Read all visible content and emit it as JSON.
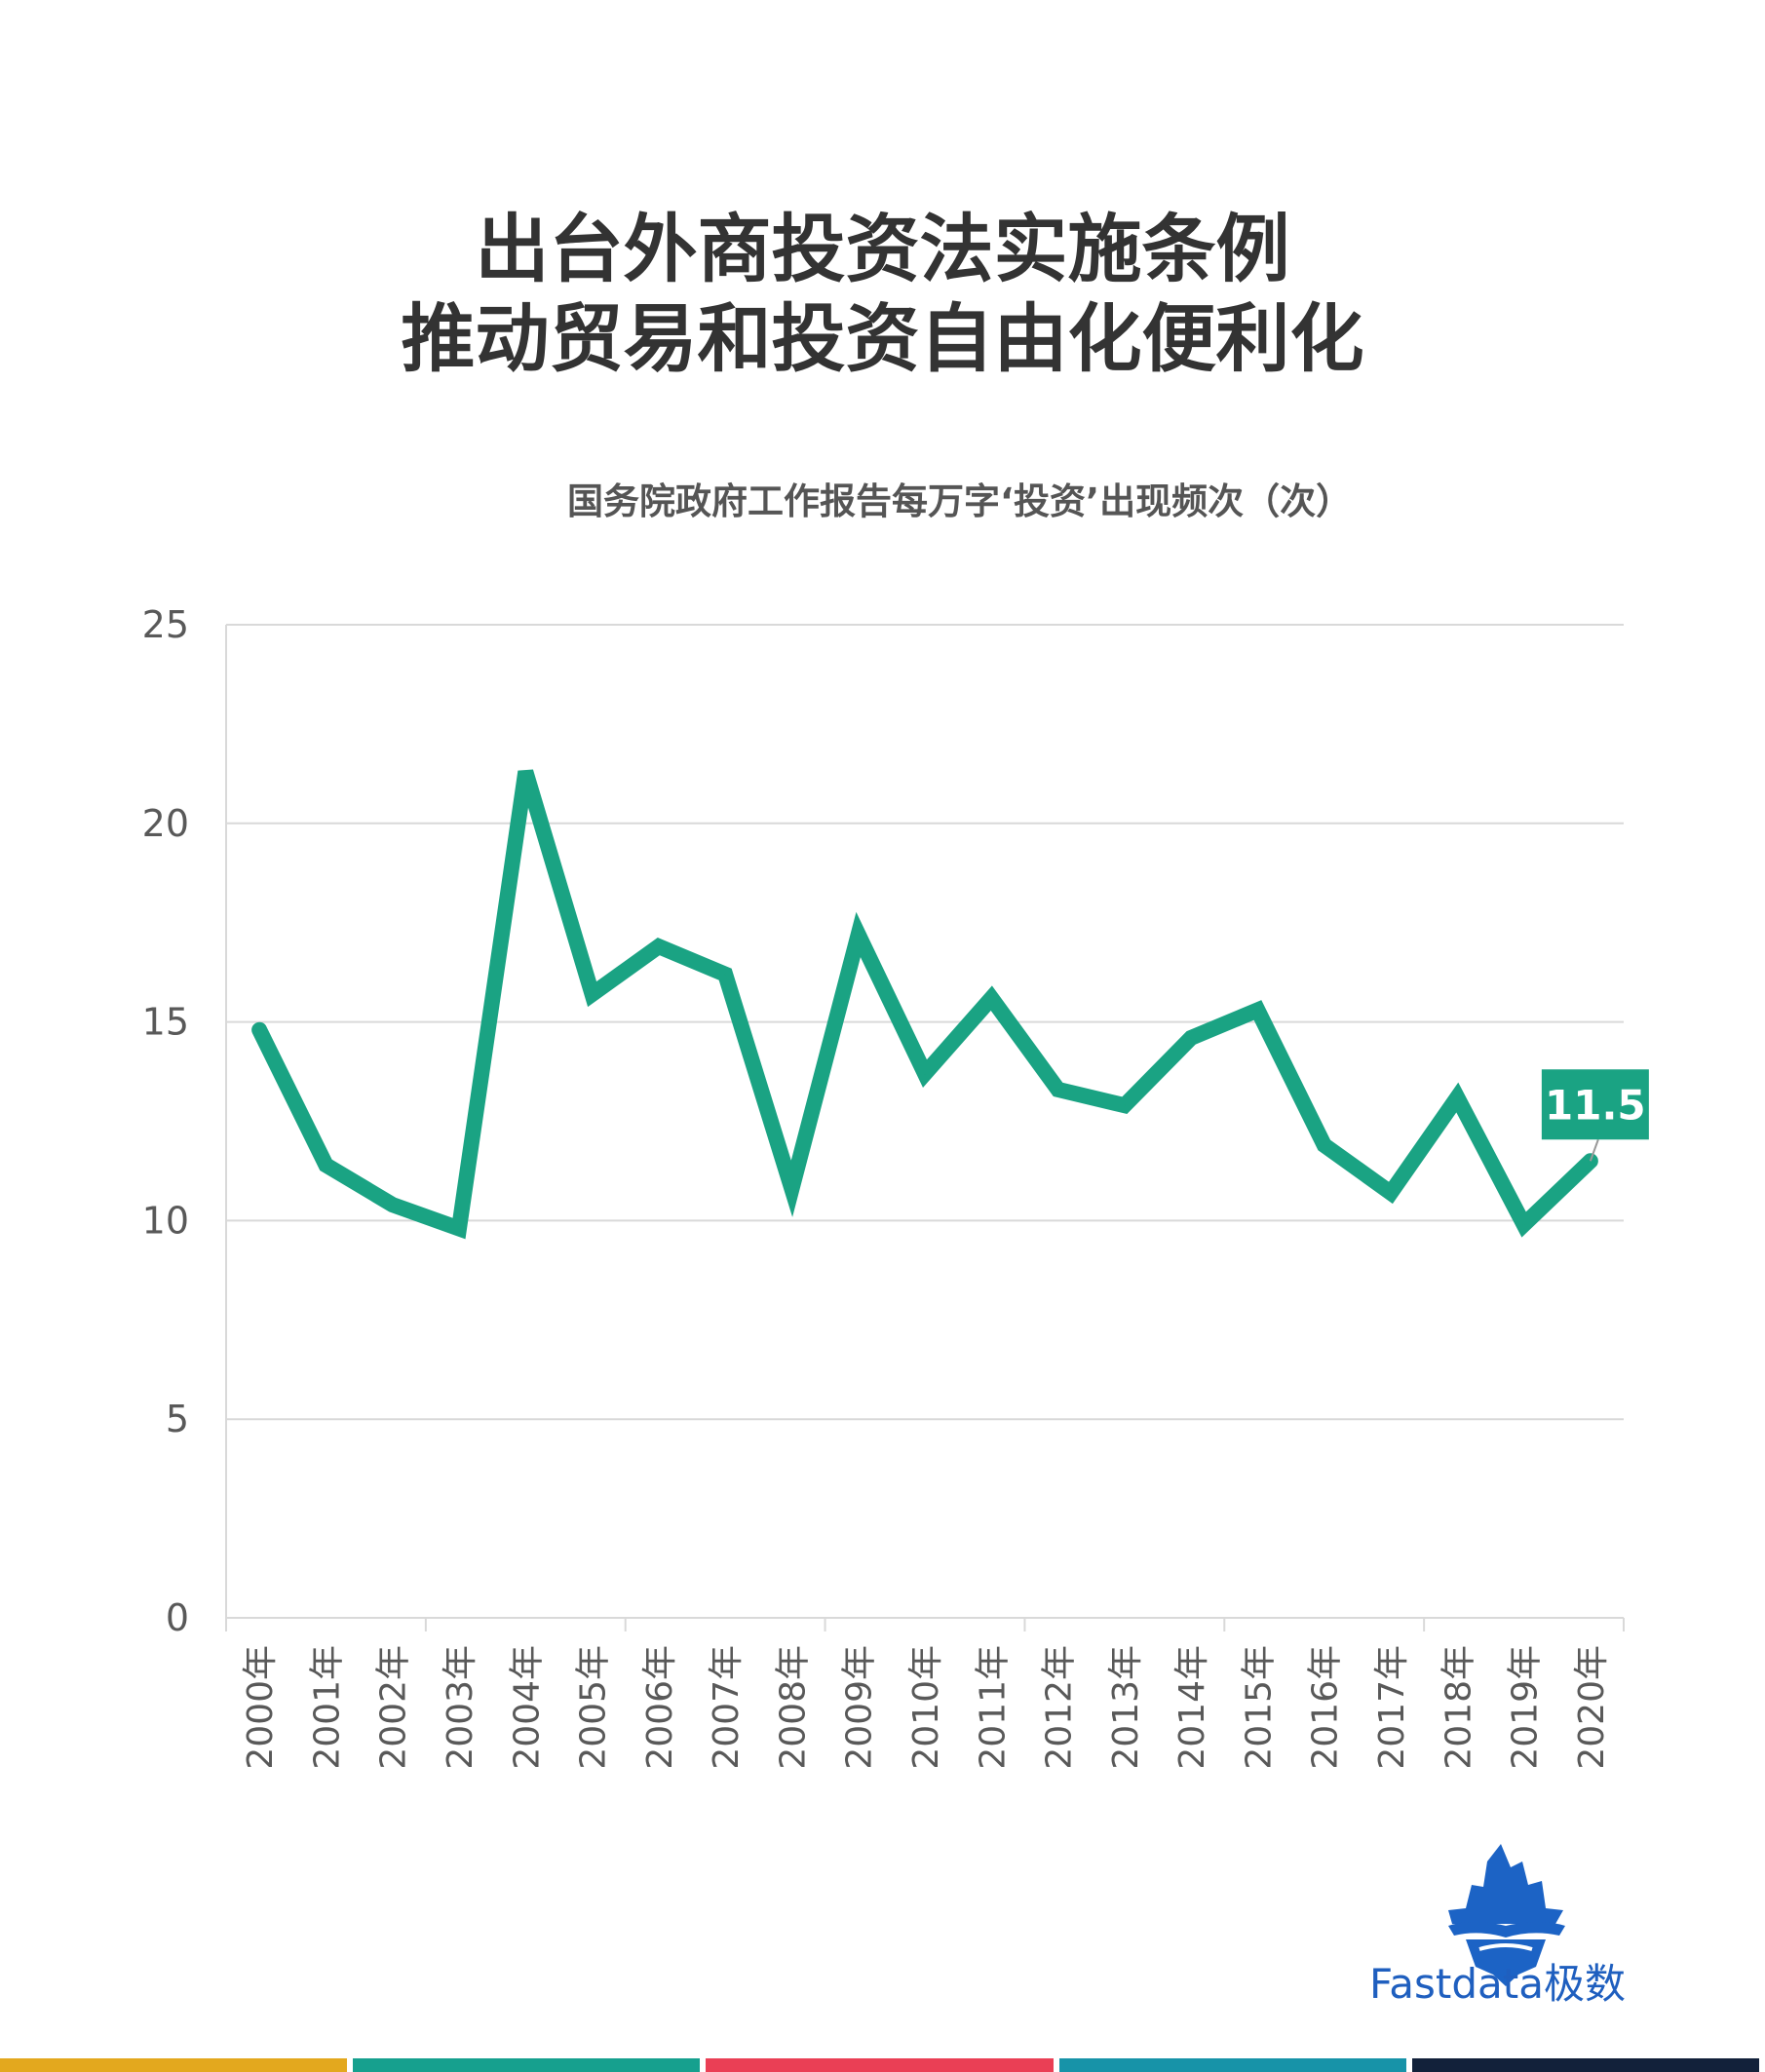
{
  "header": {
    "title_line1": "出台外商投资法实施条例",
    "title_line2": "推动贸易和投资自由化便利化"
  },
  "chart_data": {
    "type": "line",
    "title": "国务院政府工作报告每万字‘投资’出现频次（次）",
    "x": [
      "2000年",
      "2001年",
      "2002年",
      "2003年",
      "2004年",
      "2005年",
      "2006年",
      "2007年",
      "2008年",
      "2009年",
      "2010年",
      "2011年",
      "2012年",
      "2013年",
      "2014年",
      "2015年",
      "2016年",
      "2017年",
      "2018年",
      "2019年",
      "2020年"
    ],
    "series": [
      {
        "values": [
          14.8,
          11.4,
          10.4,
          9.8,
          21.3,
          15.7,
          16.9,
          16.2,
          10.8,
          17.2,
          13.7,
          15.6,
          13.3,
          12.9,
          14.6,
          15.3,
          11.9,
          10.7,
          13.1,
          9.9,
          11.5
        ]
      }
    ],
    "ylim": [
      0,
      25
    ],
    "yticks": [
      0,
      5,
      10,
      15,
      20,
      25
    ],
    "grid": true,
    "line_color": "#1aa383",
    "data_labels": [
      {
        "x": "2020年",
        "text": "11.5"
      }
    ]
  },
  "footer": {
    "brand": "Fastdata极数",
    "logo_icon": "iceberg-icon",
    "stripe_colors": [
      "#e3a81e",
      "#16a08e",
      "#ea3f55",
      "#1793a8",
      "#12213a"
    ]
  }
}
